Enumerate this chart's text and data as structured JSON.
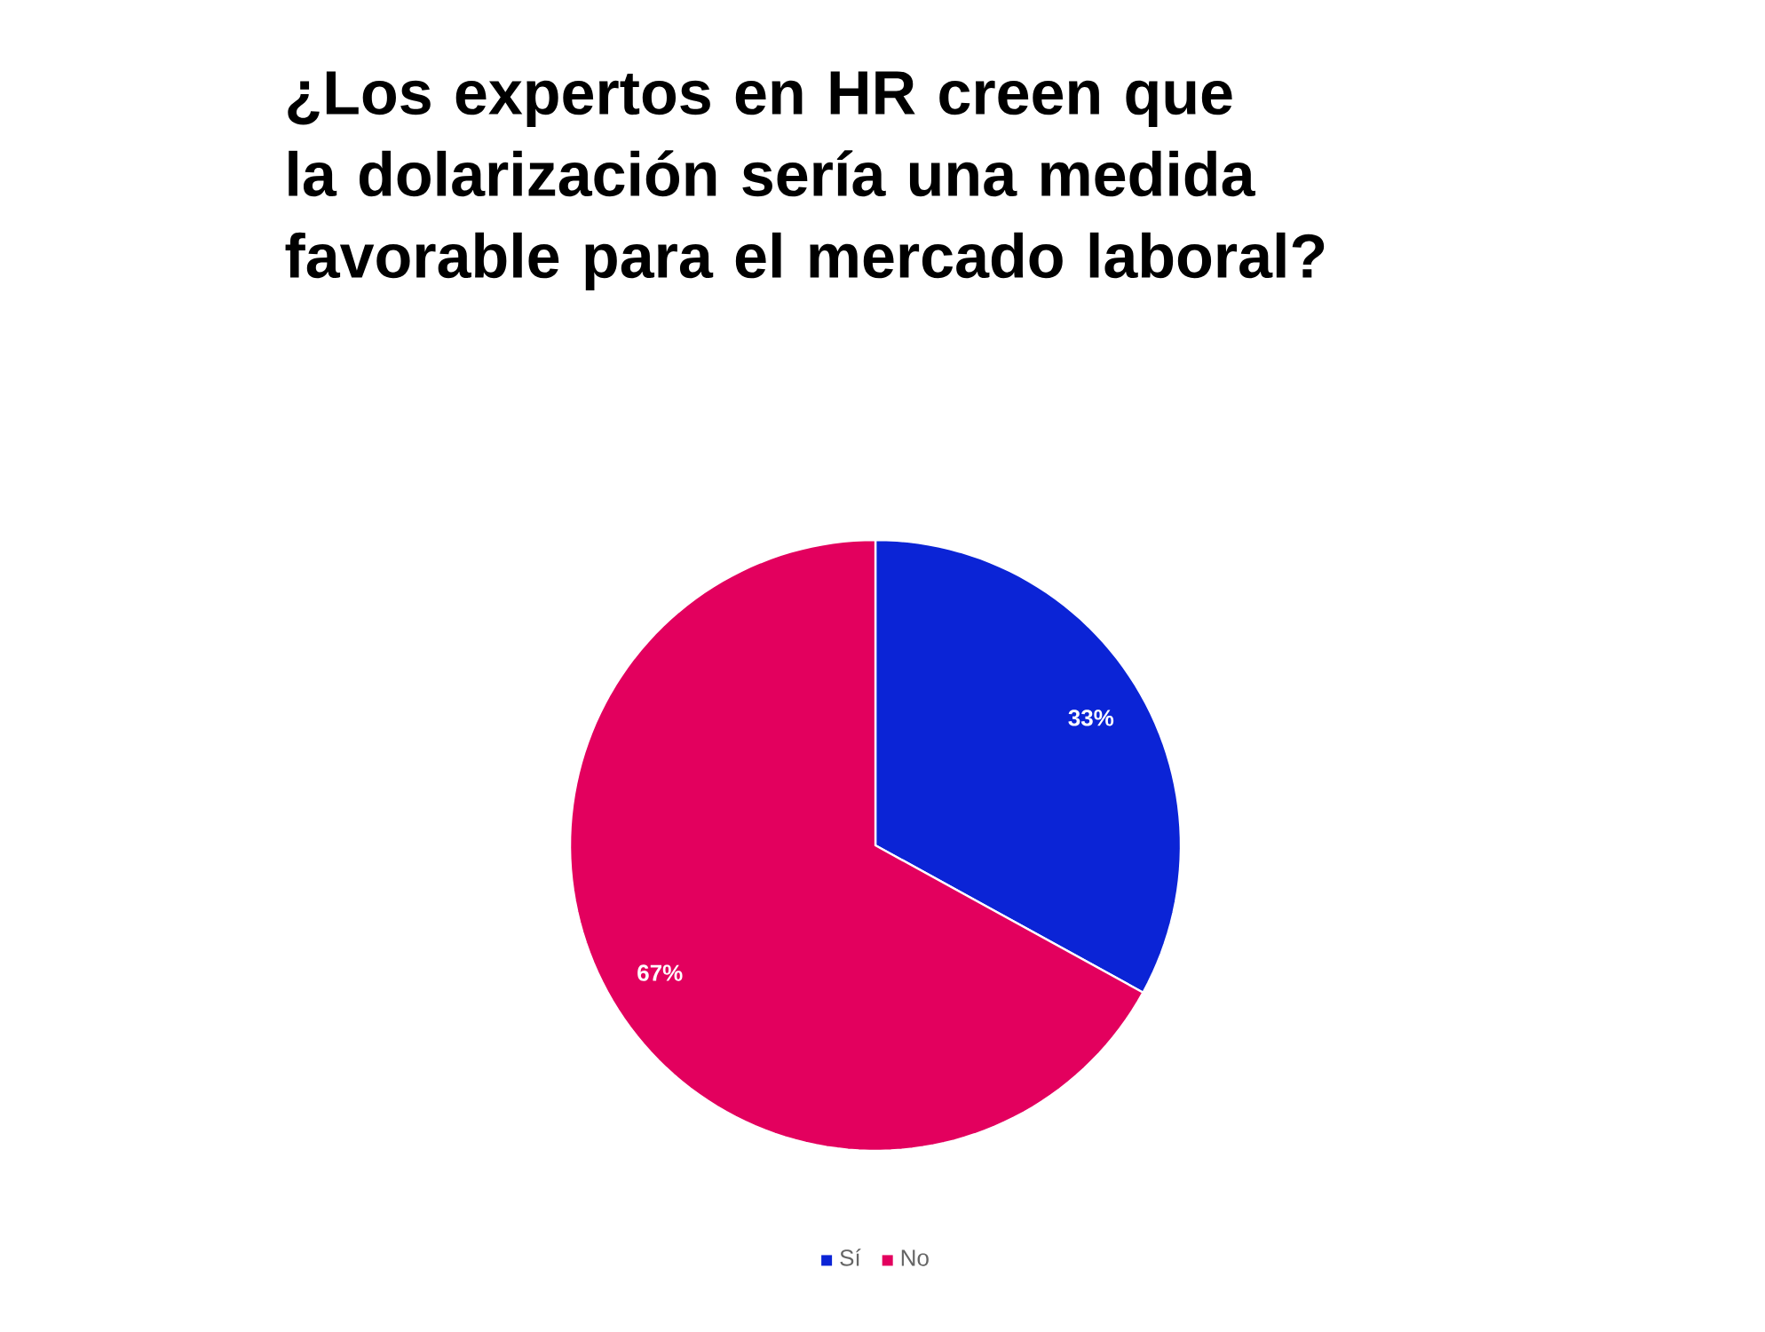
{
  "chart_data": {
    "type": "pie",
    "title": "¿Los expertos en HR creen que la dolarización sería una medida favorable para el mercado laboral?",
    "categories": [
      "Sí",
      "No"
    ],
    "values": [
      33,
      67
    ],
    "colors": [
      "#0b24d6",
      "#e3005e"
    ],
    "value_labels": [
      "33%",
      "67%"
    ],
    "legend": "bottom"
  }
}
